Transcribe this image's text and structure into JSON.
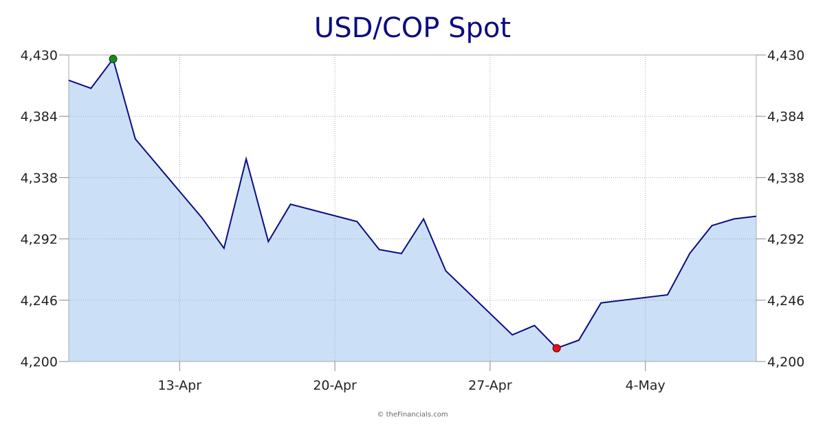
{
  "chart_data": {
    "type": "area",
    "title": "USD/COP Spot",
    "xlabel": "",
    "ylabel": "",
    "ylim": [
      4200,
      4430
    ],
    "yticks": [
      4200,
      4246,
      4292,
      4338,
      4384,
      4430
    ],
    "ytick_labels": [
      "4,200",
      "4,246",
      "4,292",
      "4,338",
      "4,384",
      "4,430"
    ],
    "xlim": [
      "2020-04-08",
      "2020-05-09"
    ],
    "xticks": [
      "2020-04-13",
      "2020-04-20",
      "2020-04-27",
      "2020-05-04"
    ],
    "xtick_labels": [
      "13-Apr",
      "20-Apr",
      "27-Apr",
      "4-May"
    ],
    "grid": true,
    "series": [
      {
        "x": [
          "2020-04-08",
          "2020-04-09",
          "2020-04-10",
          "2020-04-11",
          "2020-04-14",
          "2020-04-15",
          "2020-04-16",
          "2020-04-17",
          "2020-04-18",
          "2020-04-21",
          "2020-04-22",
          "2020-04-23",
          "2020-04-24",
          "2020-04-25",
          "2020-04-28",
          "2020-04-29",
          "2020-04-30",
          "2020-05-01",
          "2020-05-02",
          "2020-05-05",
          "2020-05-06",
          "2020-05-07",
          "2020-05-08",
          "2020-05-09"
        ],
        "values": [
          4411,
          4405,
          4427,
          4367,
          4308,
          4285,
          4352,
          4290,
          4318,
          4305,
          4284,
          4281,
          4307,
          4268,
          4220,
          4227,
          4210,
          4216,
          4244,
          4250,
          4281,
          4302,
          4307,
          4309
        ],
        "color": "#0b0b80",
        "fill": "#cbe0f7"
      }
    ],
    "max_point": {
      "x": "2020-04-10",
      "value": 4427,
      "color": "#1a8a1a"
    },
    "min_point": {
      "x": "2020-04-30",
      "value": 4210,
      "color": "#e8101a"
    }
  },
  "credit": "© theFinancials.com"
}
